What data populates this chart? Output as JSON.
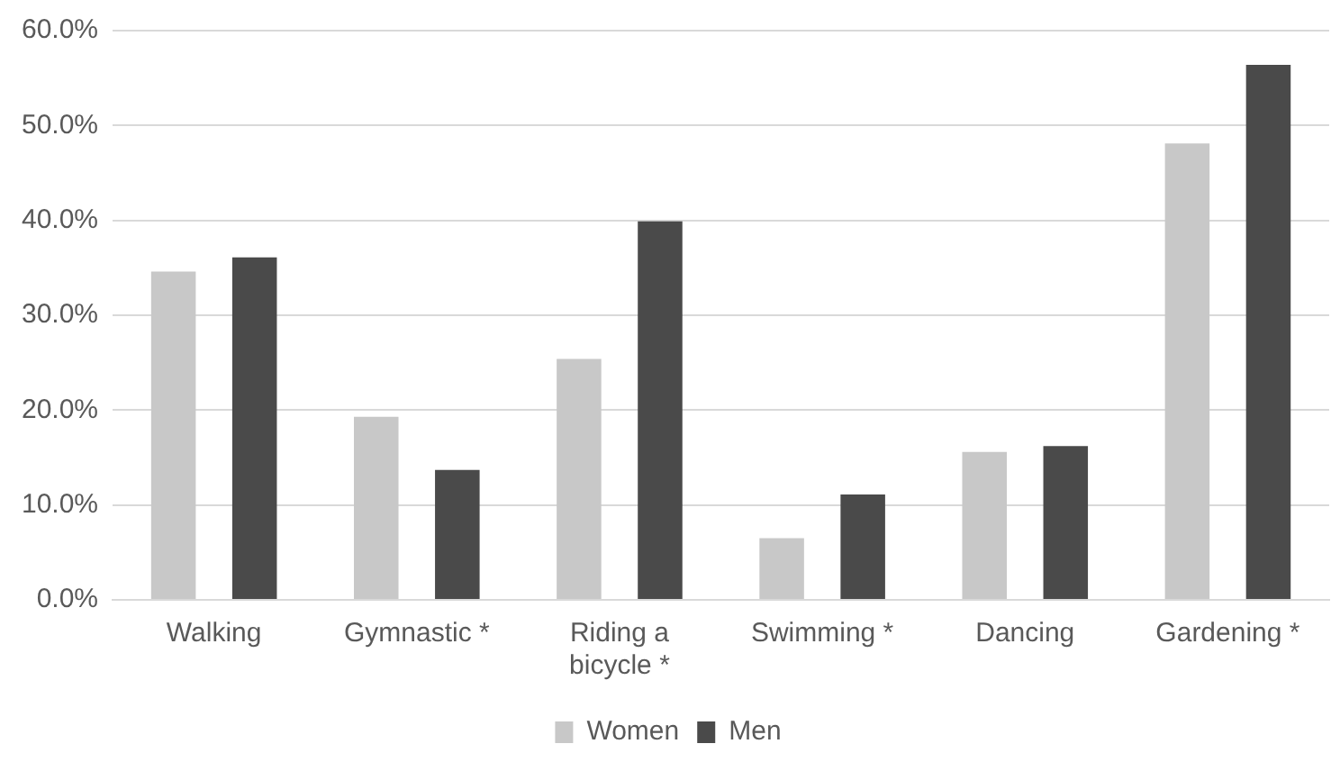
{
  "chart_data": {
    "type": "bar",
    "categories": [
      "Walking",
      "Gymnastic *",
      "Riding a bicycle *",
      "Swimming *",
      "Dancing",
      "Gardening *"
    ],
    "series": [
      {
        "name": "Women",
        "color": "#c8c8c8",
        "values": [
          34.6,
          19.3,
          25.4,
          6.5,
          15.6,
          48.1
        ]
      },
      {
        "name": "Men",
        "color": "#4a4a4a",
        "values": [
          36.1,
          13.7,
          39.9,
          11.1,
          16.2,
          56.4
        ]
      }
    ],
    "ylim": [
      0,
      60
    ],
    "yticks": [
      {
        "value": 0,
        "label": "0.0%"
      },
      {
        "value": 10,
        "label": "10.0%"
      },
      {
        "value": 20,
        "label": "20.0%"
      },
      {
        "value": 30,
        "label": "30.0%"
      },
      {
        "value": 40,
        "label": "40.0%"
      },
      {
        "value": 50,
        "label": "50.0%"
      },
      {
        "value": 60,
        "label": "60.0%"
      }
    ],
    "grid": "y",
    "legend": "bottom"
  }
}
